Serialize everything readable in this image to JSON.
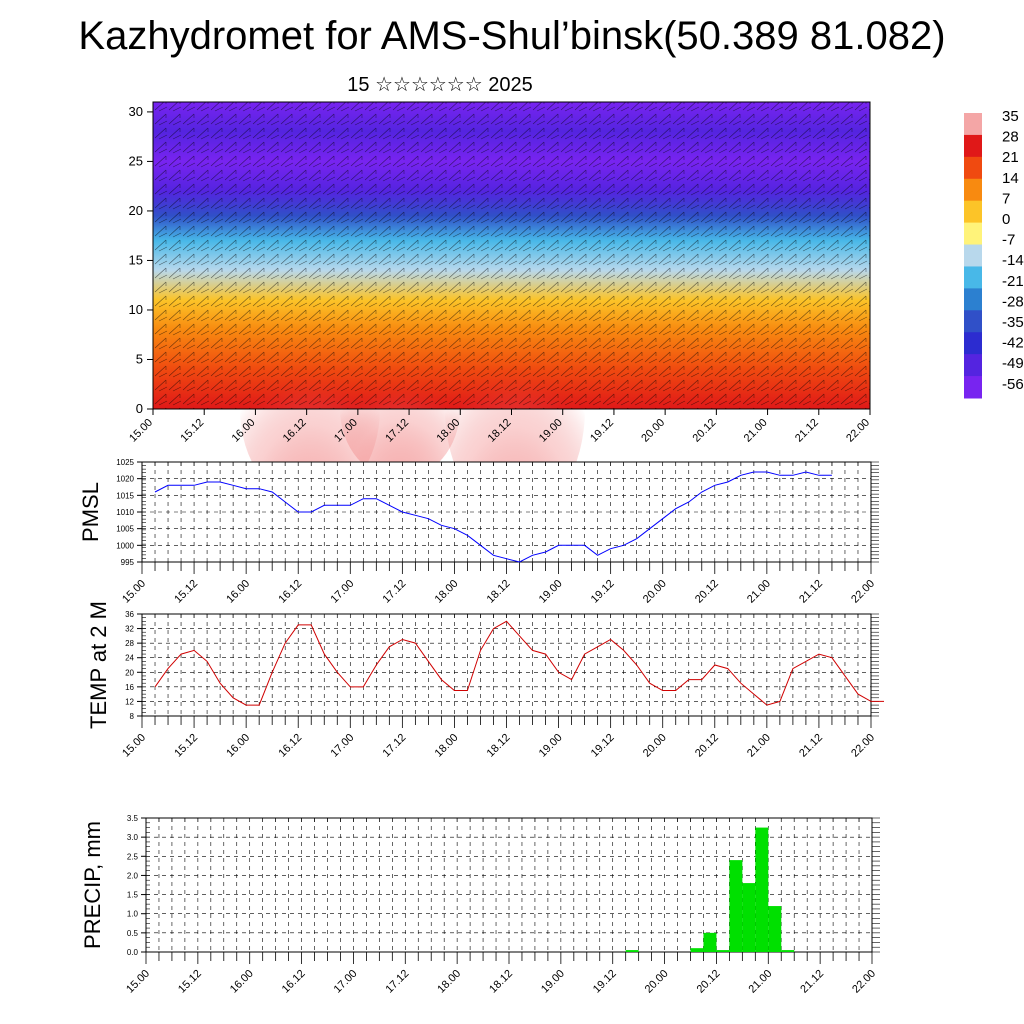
{
  "title": "Kazhydromet for AMS-Shul’binsk(50.389 81.082)",
  "subtitle": "15 ☆☆☆☆☆☆ 2025",
  "x_tick_labels": [
    "15.00",
    "15.12",
    "16.00",
    "16.12",
    "17.00",
    "17.12",
    "18.00",
    "18.12",
    "19.00",
    "19.12",
    "20.00",
    "20.12",
    "21.00",
    "21.12",
    "22.00"
  ],
  "colorbar": {
    "labels": [
      "35",
      "28",
      "21",
      "14",
      "7",
      "0",
      "-7",
      "-14",
      "-21",
      "-28",
      "-35",
      "-42",
      "-49",
      "-56"
    ],
    "colors": [
      "#f4a6a6",
      "#e01818",
      "#f04a10",
      "#f88a10",
      "#fcc428",
      "#fff37a",
      "#b8d8ec",
      "#48b8e8",
      "#2c80d0",
      "#3050c8",
      "#2c2cd0",
      "#5424e0",
      "#7824f0"
    ]
  },
  "chart_data": [
    {
      "type": "heatmap",
      "title": "",
      "ylabel": "",
      "ylim": [
        0,
        31
      ],
      "y_ticks": [
        0,
        5,
        10,
        15,
        20,
        25,
        30
      ],
      "x_ticks": [
        "15.00",
        "15.12",
        "16.00",
        "16.12",
        "17.00",
        "17.12",
        "18.00",
        "18.12",
        "19.00",
        "19.12",
        "20.00",
        "20.12",
        "21.00",
        "21.12",
        "22.00"
      ],
      "color_stops": [
        {
          "y": 0,
          "value": 28
        },
        {
          "y": 4,
          "value": 21
        },
        {
          "y": 8,
          "value": 14
        },
        {
          "y": 11,
          "value": 7
        },
        {
          "y": 14,
          "value": -7
        },
        {
          "y": 17,
          "value": -21
        },
        {
          "y": 19.5,
          "value": -35
        },
        {
          "y": 22,
          "value": -49
        },
        {
          "y": 25,
          "value": -56
        },
        {
          "y": 28,
          "value": -49
        },
        {
          "y": 31,
          "value": -56
        }
      ]
    },
    {
      "type": "line",
      "ylabel": "PMSL",
      "ylim": [
        995,
        1025
      ],
      "y_ticks": [
        995,
        1000,
        1005,
        1010,
        1015,
        1020,
        1025
      ],
      "x_ticks": [
        "15.00",
        "15.12",
        "16.00",
        "16.12",
        "17.00",
        "17.12",
        "18.00",
        "18.12",
        "19.00",
        "19.12",
        "20.00",
        "20.12",
        "21.00",
        "21.12",
        "22.00"
      ],
      "series": [
        {
          "color": "#0000ff",
          "values": [
            1016,
            1018,
            1018,
            1018,
            1019,
            1019,
            1018,
            1017,
            1017,
            1016,
            1013,
            1010,
            1010,
            1012,
            1012,
            1012,
            1014,
            1014,
            1012,
            1010,
            1009,
            1008,
            1006,
            1005,
            1003,
            1000,
            997,
            996,
            995,
            997,
            998,
            1000,
            1000,
            1000,
            997,
            999,
            1000,
            1002,
            1005,
            1008,
            1011,
            1013,
            1016,
            1018,
            1019,
            1021,
            1022,
            1022,
            1021,
            1021,
            1022,
            1021,
            1021
          ]
        }
      ]
    },
    {
      "type": "line",
      "ylabel": "TEMP at 2 M",
      "ylim": [
        8,
        36
      ],
      "y_ticks": [
        8,
        12,
        16,
        20,
        24,
        28,
        32,
        36
      ],
      "x_ticks": [
        "15.00",
        "15.12",
        "16.00",
        "16.12",
        "17.00",
        "17.12",
        "18.00",
        "18.12",
        "19.00",
        "19.12",
        "20.00",
        "20.12",
        "21.00",
        "21.12",
        "22.00"
      ],
      "series": [
        {
          "color": "#d00000",
          "values": [
            16,
            21,
            25,
            26,
            23,
            17,
            13,
            11,
            11,
            20,
            28,
            33,
            33,
            25,
            20,
            16,
            16,
            22,
            27,
            29,
            28,
            23,
            18,
            15,
            15,
            26,
            32,
            34,
            30,
            26,
            25,
            20,
            18,
            25,
            27,
            29,
            26,
            22,
            17,
            15,
            15,
            18,
            18,
            22,
            21,
            17,
            14,
            11,
            12,
            21,
            23,
            25,
            24,
            19,
            14,
            12,
            12
          ]
        }
      ]
    },
    {
      "type": "bar",
      "ylabel": "PRECIP, mm",
      "ylim": [
        0,
        3.5
      ],
      "y_ticks": [
        "0.0",
        "0.5",
        "1.0",
        "1.5",
        "2.0",
        "2.5",
        "3.0",
        "3.5"
      ],
      "x_ticks": [
        "15.00",
        "15.12",
        "16.00",
        "16.12",
        "17.00",
        "17.12",
        "18.00",
        "18.12",
        "19.00",
        "19.12",
        "20.00",
        "20.12",
        "21.00",
        "21.12",
        "22.00"
      ],
      "bar_color": "#00e000",
      "hours": [
        40,
        44,
        46,
        48,
        52,
        56,
        58,
        60,
        62,
        64,
        66
      ],
      "values": [
        0.05,
        0.1,
        0.5,
        0.05,
        2.4,
        1.8,
        3.25,
        1.2,
        0.05,
        0.0,
        0.0
      ]
    }
  ]
}
